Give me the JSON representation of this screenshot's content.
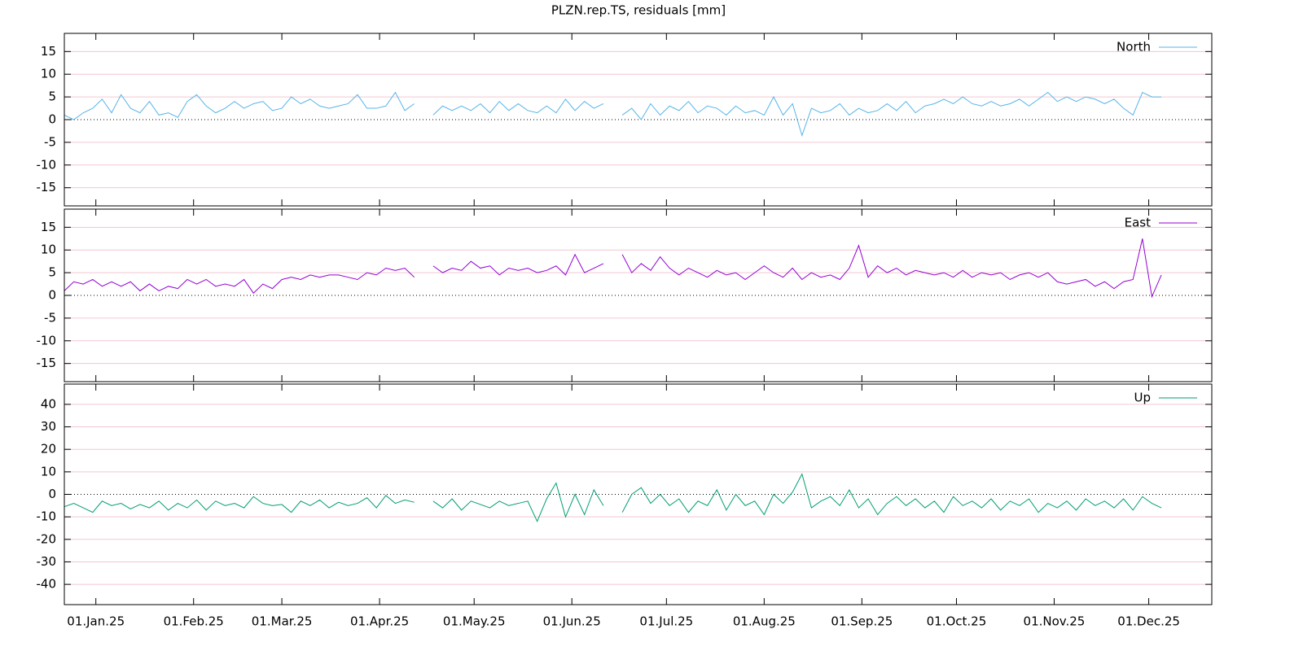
{
  "chart_data": {
    "type": "line",
    "title": "PLZN.rep.TS, residuals [mm]",
    "xlim": [
      "2024-12-22",
      "2025-12-21"
    ],
    "xticks": [
      {
        "value": "2025-01-01",
        "label": "01.Jan.25"
      },
      {
        "value": "2025-02-01",
        "label": "01.Feb.25"
      },
      {
        "value": "2025-03-01",
        "label": "01.Mar.25"
      },
      {
        "value": "2025-04-01",
        "label": "01.Apr.25"
      },
      {
        "value": "2025-05-01",
        "label": "01.May.25"
      },
      {
        "value": "2025-06-01",
        "label": "01.Jun.25"
      },
      {
        "value": "2025-07-01",
        "label": "01.Jul.25"
      },
      {
        "value": "2025-08-01",
        "label": "01.Aug.25"
      },
      {
        "value": "2025-09-01",
        "label": "01.Sep.25"
      },
      {
        "value": "2025-10-01",
        "label": "01.Oct.25"
      },
      {
        "value": "2025-11-01",
        "label": "01.Nov.25"
      },
      {
        "value": "2025-12-01",
        "label": "01.Dec.25"
      }
    ],
    "x": [
      "2024-12-22",
      "2024-12-25",
      "2024-12-28",
      "2024-12-31",
      "2025-01-03",
      "2025-01-06",
      "2025-01-09",
      "2025-01-12",
      "2025-01-15",
      "2025-01-18",
      "2025-01-21",
      "2025-01-24",
      "2025-01-27",
      "2025-01-30",
      "2025-02-02",
      "2025-02-05",
      "2025-02-08",
      "2025-02-11",
      "2025-02-14",
      "2025-02-17",
      "2025-02-20",
      "2025-02-23",
      "2025-02-26",
      "2025-03-01",
      "2025-03-04",
      "2025-03-07",
      "2025-03-10",
      "2025-03-13",
      "2025-03-16",
      "2025-03-19",
      "2025-03-22",
      "2025-03-25",
      "2025-03-28",
      "2025-03-31",
      "2025-04-03",
      "2025-04-06",
      "2025-04-09",
      "2025-04-12",
      "2025-04-15",
      "2025-04-18",
      "2025-04-21",
      "2025-04-24",
      "2025-04-27",
      "2025-04-30",
      "2025-05-03",
      "2025-05-06",
      "2025-05-09",
      "2025-05-12",
      "2025-05-15",
      "2025-05-18",
      "2025-05-21",
      "2025-05-24",
      "2025-05-27",
      "2025-05-30",
      "2025-06-02",
      "2025-06-05",
      "2025-06-08",
      "2025-06-11",
      "2025-06-14",
      "2025-06-17",
      "2025-06-20",
      "2025-06-23",
      "2025-06-26",
      "2025-06-29",
      "2025-07-02",
      "2025-07-05",
      "2025-07-08",
      "2025-07-11",
      "2025-07-14",
      "2025-07-17",
      "2025-07-20",
      "2025-07-23",
      "2025-07-26",
      "2025-07-29",
      "2025-08-01",
      "2025-08-04",
      "2025-08-07",
      "2025-08-10",
      "2025-08-13",
      "2025-08-16",
      "2025-08-19",
      "2025-08-22",
      "2025-08-25",
      "2025-08-28",
      "2025-08-31",
      "2025-09-03",
      "2025-09-06",
      "2025-09-09",
      "2025-09-12",
      "2025-09-15",
      "2025-09-18",
      "2025-09-21",
      "2025-09-24",
      "2025-09-27",
      "2025-09-30",
      "2025-10-03",
      "2025-10-06",
      "2025-10-09",
      "2025-10-12",
      "2025-10-15",
      "2025-10-18",
      "2025-10-21",
      "2025-10-24",
      "2025-10-27",
      "2025-10-30",
      "2025-11-02",
      "2025-11-05",
      "2025-11-08",
      "2025-11-11",
      "2025-11-14",
      "2025-11-17",
      "2025-11-20",
      "2025-11-23",
      "2025-11-26",
      "2025-11-29",
      "2025-12-02",
      "2025-12-05"
    ],
    "panels": [
      {
        "ylim": [
          -19,
          19
        ],
        "yticks": [
          -15,
          -10,
          -5,
          0,
          5,
          10,
          15
        ],
        "grid": true,
        "series": [
          {
            "name": "North",
            "color": "#56b4e9",
            "values": [
              1,
              0,
              1.5,
              2.5,
              4.5,
              1.5,
              5.5,
              2.5,
              1.5,
              4,
              1,
              1.5,
              0.5,
              4,
              5.5,
              3,
              1.5,
              2.5,
              4,
              2.5,
              3.5,
              4,
              2,
              2.5,
              5,
              3.5,
              4.5,
              3,
              2.5,
              3,
              3.5,
              5.5,
              2.5,
              2.5,
              3,
              6,
              2,
              3.5,
              null,
              1,
              3,
              2,
              3,
              2,
              3.5,
              1.5,
              4,
              2,
              3.5,
              2,
              1.5,
              3,
              1.5,
              4.5,
              2,
              4,
              2.5,
              3.5,
              null,
              1,
              2.5,
              0,
              3.5,
              1,
              3,
              2,
              4,
              1.5,
              3,
              2.5,
              1,
              3,
              1.5,
              2,
              1,
              5,
              1,
              3.5,
              -3.5,
              2.5,
              1.5,
              2,
              3.5,
              1,
              2.5,
              1.5,
              2,
              3.5,
              2,
              4,
              1.5,
              3,
              3.5,
              4.5,
              3.5,
              5,
              3.5,
              3,
              4,
              3,
              3.5,
              4.5,
              3,
              4.5,
              6,
              4,
              5,
              4,
              5,
              4.5,
              3.5,
              4.5,
              2.5,
              1,
              6,
              5,
              5
            ]
          }
        ]
      },
      {
        "ylim": [
          -19,
          19
        ],
        "yticks": [
          -15,
          -10,
          -5,
          0,
          5,
          10,
          15
        ],
        "grid": true,
        "series": [
          {
            "name": "East",
            "color": "#9400d3",
            "values": [
              1,
              3,
              2.5,
              3.5,
              2,
              3,
              2,
              3,
              1,
              2.5,
              1,
              2,
              1.5,
              3.5,
              2.5,
              3.5,
              2,
              2.5,
              2,
              3.5,
              0.5,
              2.5,
              1.5,
              3.5,
              4,
              3.5,
              4.5,
              4,
              4.5,
              4.5,
              4,
              3.5,
              5,
              4.5,
              6,
              5.5,
              6,
              4,
              null,
              6.5,
              5,
              6,
              5.5,
              7.5,
              6,
              6.5,
              4.5,
              6,
              5.5,
              6,
              5,
              5.5,
              6.5,
              4.5,
              9,
              5,
              6,
              7,
              null,
              9,
              5,
              7,
              5.5,
              8.5,
              6,
              4.5,
              6,
              5,
              4,
              5.5,
              4.5,
              5,
              3.5,
              5,
              6.5,
              5,
              4,
              6,
              3.5,
              5,
              4,
              4.5,
              3.5,
              6,
              11,
              4,
              6.5,
              5,
              6,
              4.5,
              5.5,
              5,
              4.5,
              5,
              4,
              5.5,
              4,
              5,
              4.5,
              5,
              3.5,
              4.5,
              5,
              4,
              5,
              3,
              2.5,
              3,
              3.5,
              2,
              3,
              1.5,
              3,
              3.5,
              12.5,
              -0.3,
              4.5
            ]
          }
        ]
      },
      {
        "ylim": [
          -49,
          49
        ],
        "yticks": [
          -40,
          -30,
          -20,
          -10,
          0,
          10,
          20,
          30,
          40
        ],
        "grid": true,
        "series": [
          {
            "name": "Up",
            "color": "#009e73",
            "values": [
              -5.5,
              -4,
              -6,
              -8,
              -3,
              -5,
              -4,
              -6.5,
              -4.5,
              -6,
              -3,
              -7,
              -4,
              -6,
              -2.5,
              -7,
              -3,
              -5,
              -4,
              -6,
              -1,
              -4,
              -5,
              -4.5,
              -8,
              -3,
              -5,
              -2.5,
              -6,
              -3.5,
              -5,
              -4,
              -1.5,
              -6,
              -0.5,
              -4,
              -2.5,
              -3.5,
              null,
              -3,
              -6,
              -2,
              -7,
              -3,
              -4.5,
              -6,
              -3,
              -5,
              -4,
              -3,
              -12,
              -2,
              5,
              -10,
              0,
              -9,
              2,
              -5,
              null,
              -8,
              0,
              3,
              -4,
              0,
              -5,
              -2,
              -8,
              -3,
              -5,
              2,
              -7,
              0,
              -5,
              -3,
              -9,
              0,
              -4,
              1,
              9,
              -6,
              -3,
              -1,
              -5,
              2,
              -6,
              -2,
              -9,
              -4,
              -1,
              -5,
              -2,
              -6,
              -3,
              -8,
              -1,
              -5,
              -3,
              -6,
              -2,
              -7,
              -3,
              -5,
              -2,
              -8,
              -4,
              -6,
              -3,
              -7,
              -2,
              -5,
              -3,
              -6,
              -2,
              -7,
              -1,
              -4,
              -6
            ]
          }
        ]
      }
    ]
  }
}
